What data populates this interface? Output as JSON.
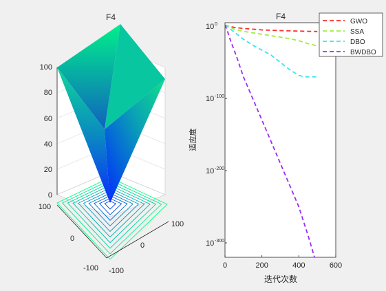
{
  "figure": {
    "background": "#f0f0f0"
  },
  "left_plot": {
    "title": "F4",
    "z_ticks": [
      "0",
      "20",
      "40",
      "60",
      "80",
      "100"
    ],
    "x_ticks": [
      "-100",
      "0",
      "100"
    ],
    "y_ticks": [
      "-100",
      "0",
      "100"
    ]
  },
  "right_plot": {
    "title": "F4",
    "xlabel": "迭代次数",
    "ylabel": "适应度"
  },
  "chart_data": [
    {
      "type": "surface",
      "title": "F4",
      "zlim": [
        0,
        100
      ],
      "xlim": [
        -100,
        100
      ],
      "ylim": [
        -100,
        100
      ],
      "surface_function": "max(|x|,|y|)",
      "contour_levels": [
        10,
        20,
        30,
        40,
        50,
        60,
        70,
        80,
        90,
        100
      ],
      "colormap": [
        "#0000ff",
        "#00ff80"
      ],
      "grid": true
    },
    {
      "type": "line",
      "title": "F4",
      "xlabel": "迭代次数",
      "ylabel": "适应度",
      "xlim": [
        0,
        600
      ],
      "x_ticks": [
        0,
        200,
        400,
        600
      ],
      "yscale": "log",
      "y_exponent_range": [
        -320,
        5
      ],
      "y_ticks": [
        {
          "exp": 0,
          "label": "10"
        },
        {
          "exp": -100,
          "label": "10"
        },
        {
          "exp": -200,
          "label": "10"
        },
        {
          "exp": -300,
          "label": "10"
        }
      ],
      "y_tick_exponents": [
        "0",
        "-100",
        "-200",
        "-300"
      ],
      "legend_position": "top-right",
      "series": [
        {
          "name": "GWO",
          "color": "#ff2b2b",
          "x": [
            0,
            20,
            50,
            100,
            150,
            200,
            250,
            300,
            350,
            400,
            450,
            500
          ],
          "log10_y": [
            2,
            0,
            -1.5,
            -3,
            -4,
            -5,
            -5.5,
            -6,
            -6.3,
            -6.6,
            -6.9,
            -7.2
          ]
        },
        {
          "name": "SSA",
          "color": "#9cf03a",
          "x": [
            0,
            20,
            50,
            100,
            150,
            200,
            250,
            300,
            350,
            400,
            450,
            500
          ],
          "log10_y": [
            2,
            0,
            -4,
            -7,
            -9,
            -11,
            -13,
            -15,
            -17,
            -20,
            -24,
            -27
          ]
        },
        {
          "name": "DBO",
          "color": "#33e6f2",
          "x": [
            0,
            30,
            60,
            100,
            150,
            200,
            250,
            300,
            350,
            400,
            430,
            460,
            500
          ],
          "log10_y": [
            2,
            -4,
            -10,
            -18,
            -26,
            -33,
            -40,
            -50,
            -60,
            -68,
            -70,
            -70,
            -70
          ]
        },
        {
          "name": "BWDBO",
          "color": "#9b2cf5",
          "x": [
            0,
            15,
            30,
            60,
            100,
            150,
            200,
            250,
            300,
            350,
            400,
            450,
            485
          ],
          "log10_y": [
            2,
            -8,
            -20,
            -40,
            -70,
            -100,
            -130,
            -160,
            -190,
            -220,
            -250,
            -290,
            -320
          ]
        }
      ]
    }
  ]
}
